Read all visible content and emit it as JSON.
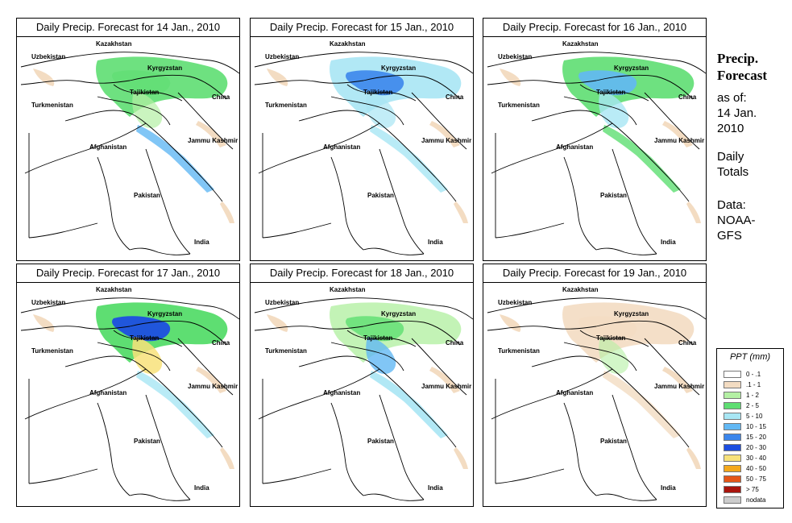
{
  "panels": [
    {
      "title": "Daily Precip. Forecast for  14 Jan., 2010",
      "intensity": 0
    },
    {
      "title": "Daily Precip. Forecast for  15 Jan., 2010",
      "intensity": 1
    },
    {
      "title": "Daily Precip. Forecast for  16 Jan., 2010",
      "intensity": 2
    },
    {
      "title": "Daily Precip. Forecast for  17 Jan., 2010",
      "intensity": 3
    },
    {
      "title": "Daily Precip. Forecast for  18 Jan., 2010",
      "intensity": 4
    },
    {
      "title": "Daily Precip. Forecast for  19 Jan., 2010",
      "intensity": 5
    }
  ],
  "map_labels": {
    "kazakhstan": "Kazakhstan",
    "uzbekistan": "Uzbekistan",
    "kyrgyzstan": "Kyrgyzstan",
    "tajikistan": "Tajikistan",
    "turkmenistan": "Turkmenistan",
    "china": "China",
    "afghanistan": "Afghanistan",
    "jammu_kashmir": "Jammu Kashmir",
    "pakistan": "Pakistan",
    "india": "India"
  },
  "sidebar": {
    "title_line1": "Precip.",
    "title_line2": "Forecast",
    "asof_line1": "as of:",
    "asof_line2": "14 Jan.",
    "asof_line3": "2010",
    "daily_line1": "Daily",
    "daily_line2": "Totals",
    "data_line1": "Data:",
    "data_line2": "NOAA-",
    "data_line3": "GFS"
  },
  "legend": {
    "title": "PPT (mm)",
    "items": [
      {
        "label": "0 - .1",
        "color": "#ffffff"
      },
      {
        "label": ".1 - 1",
        "color": "#f3dcc2"
      },
      {
        "label": "1 - 2",
        "color": "#b4f0a4"
      },
      {
        "label": "2 - 5",
        "color": "#5ede72"
      },
      {
        "label": "5 - 10",
        "color": "#a8e6f4"
      },
      {
        "label": "10 - 15",
        "color": "#62b8f4"
      },
      {
        "label": "15 - 20",
        "color": "#3c86ec"
      },
      {
        "label": "20 - 30",
        "color": "#1c4ee0"
      },
      {
        "label": "30 - 40",
        "color": "#f8e27a"
      },
      {
        "label": "40 - 50",
        "color": "#f4a81c"
      },
      {
        "label": "50 - 75",
        "color": "#e45618"
      },
      {
        "label": "> 75",
        "color": "#a8140c"
      },
      {
        "label": "nodata",
        "color": "#cccccc"
      }
    ]
  }
}
